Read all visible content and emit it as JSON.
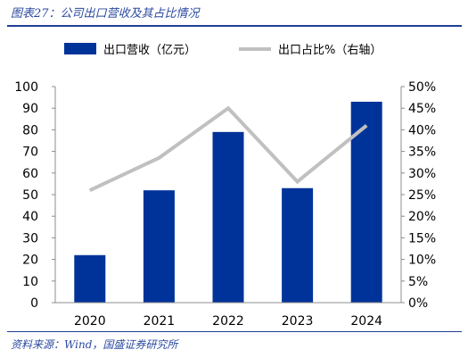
{
  "figure": {
    "title": "图表27：公司出口营收及其占比情况",
    "source": "资料来源：Wind，国盛证券研究所"
  },
  "chart_data": {
    "type": "bar",
    "categories": [
      "2020",
      "2021",
      "2022",
      "2023",
      "2024"
    ],
    "series": [
      {
        "name": "出口营收（亿元）",
        "type": "bar",
        "axis": "left",
        "color": "#003399",
        "values": [
          22,
          52,
          79,
          53,
          93
        ]
      },
      {
        "name": "出口占比%（右轴）",
        "type": "line",
        "axis": "right",
        "color": "#c0c0c0",
        "values": [
          26,
          33.5,
          45,
          28,
          41
        ]
      }
    ],
    "ylim_left": [
      0,
      100
    ],
    "yticks_left": [
      "0",
      "10",
      "20",
      "30",
      "40",
      "50",
      "60",
      "70",
      "80",
      "90",
      "100"
    ],
    "ylim_right": [
      0,
      50
    ],
    "yticks_right": [
      "0%",
      "5%",
      "10%",
      "15%",
      "20%",
      "25%",
      "30%",
      "35%",
      "40%",
      "45%",
      "50%"
    ],
    "legend_position": "top-center",
    "grid": false
  }
}
